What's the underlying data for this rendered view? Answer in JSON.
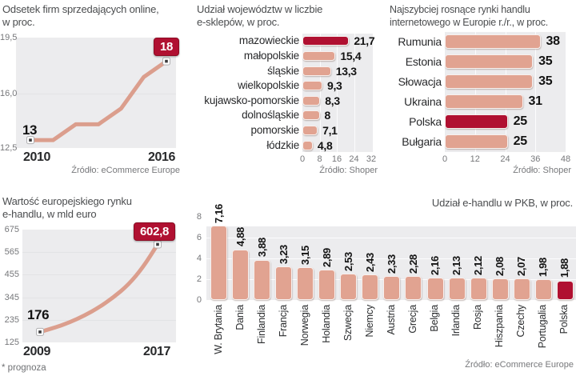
{
  "colors": {
    "accent_red": "#b01031",
    "bar_salmon": "#e1a391",
    "line_salmon": "#db9e8d",
    "plot_bg": "#ececee",
    "text_dark": "#131313",
    "text_gray": "#76777a"
  },
  "chart_data": [
    {
      "id": "online-sellers",
      "type": "line",
      "title_line1": "Odsetek firm sprzedających online,",
      "title_line2": "w proc.",
      "x": [
        2010,
        2011,
        2012,
        2013,
        2014,
        2015,
        2016
      ],
      "values": [
        13,
        13,
        14,
        14,
        15,
        17,
        18
      ],
      "ylim": [
        12.5,
        19.5
      ],
      "yticks": [
        "19,5",
        "16,0",
        "12,5"
      ],
      "xtick_labels": [
        "2010",
        "2016"
      ],
      "first_label": "13",
      "last_label": "18",
      "source": "Źródło: eCommerce Europe"
    },
    {
      "id": "voivodeship-eshops",
      "type": "bar",
      "orientation": "horizontal",
      "title_line1": "Udział województw w liczbie",
      "title_line2": "e-sklepów, w proc.",
      "categories": [
        "mazowieckie",
        "małopolskie",
        "śląskie",
        "wielkopolskie",
        "kujawsko-pomorskie",
        "dolnośląskie",
        "pomorskie",
        "łódzkie"
      ],
      "values": [
        21.7,
        15.4,
        13.3,
        9.3,
        8.3,
        8,
        7.1,
        4.8
      ],
      "value_labels": [
        "21,7",
        "15,4",
        "13,3",
        "9,3",
        "8,3",
        "8",
        "7,1",
        "4,8"
      ],
      "highlight_index": 0,
      "xticks": [
        "0",
        "8",
        "16",
        "24",
        "32"
      ],
      "xlim": [
        0,
        32
      ],
      "source": "Źródło: Shoper"
    },
    {
      "id": "fastest-growing-markets",
      "type": "bar",
      "orientation": "horizontal",
      "title_line1": "Najszybciej rosnące rynki handlu",
      "title_line2": "internetowego w Europie r./r., w proc.",
      "categories": [
        "Rumunia",
        "Estonia",
        "Słowacja",
        "Ukraina",
        "Polska",
        "Bułgaria"
      ],
      "values": [
        38,
        35,
        35,
        31,
        25,
        25
      ],
      "value_labels": [
        "38",
        "35",
        "35",
        "31",
        "25",
        "25"
      ],
      "highlight_index": 4,
      "xticks": [
        "0",
        "12",
        "24",
        "36",
        "48"
      ],
      "xlim": [
        0,
        48
      ],
      "source": "Źródło: Shoper"
    },
    {
      "id": "european-ecommerce-value",
      "type": "line",
      "title_line1": "Wartość europejskiego rynku",
      "title_line2": "e-handlu, w mld euro",
      "x": [
        2009,
        2010,
        2011,
        2012,
        2013,
        2014,
        2015,
        2016,
        2017
      ],
      "values": [
        176,
        197,
        222,
        255,
        295,
        345,
        405,
        490,
        602.8
      ],
      "ylim": [
        125,
        675
      ],
      "yticks": [
        "675",
        "565",
        "455",
        "345",
        "235",
        "125"
      ],
      "xtick_labels": [
        "2009",
        "2017"
      ],
      "first_label": "176",
      "last_label": "602,8",
      "footnote": "* prognoza"
    },
    {
      "id": "ecommerce-gdp-share",
      "type": "bar",
      "orientation": "vertical",
      "title": "Udział e-handlu w PKB, w proc.",
      "categories": [
        "W. Brytania",
        "Dania",
        "Finlandia",
        "Francja",
        "Norwegia",
        "Holandia",
        "Szwecja",
        "Niemcy",
        "Austria",
        "Grecja",
        "Belgia",
        "Irlandia",
        "Rosja",
        "Hiszpania",
        "Czechy",
        "Portugalia",
        "Polska"
      ],
      "values": [
        7.16,
        4.88,
        3.88,
        3.23,
        3.15,
        2.89,
        2.53,
        2.43,
        2.33,
        2.28,
        2.16,
        2.13,
        2.12,
        2.08,
        2.07,
        1.98,
        1.88
      ],
      "value_labels": [
        "7,16",
        "4,88",
        "3,88",
        "3,23",
        "3,15",
        "2,89",
        "2,53",
        "2,43",
        "2,33",
        "2,28",
        "2,16",
        "2,13",
        "2,12",
        "2,08",
        "2,07",
        "1,98",
        "1,88"
      ],
      "highlight_index": 16,
      "yticks": [
        "8",
        "6",
        "4",
        "2",
        "0"
      ],
      "ylim": [
        0,
        8
      ],
      "source": "Źródło: eCommerce Europe"
    }
  ]
}
